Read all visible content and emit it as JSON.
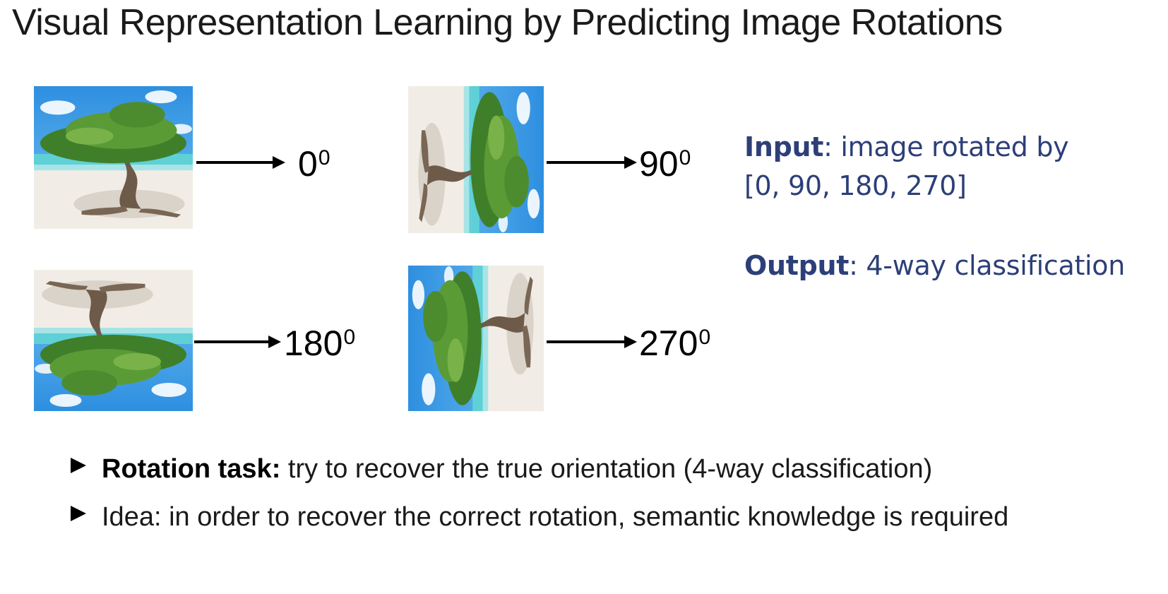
{
  "title": "Visual Representation Learning by Predicting Image Rotations",
  "rotations": [
    {
      "angle": "0",
      "sup": "0"
    },
    {
      "angle": "90",
      "sup": "0"
    },
    {
      "angle": "180",
      "sup": "0"
    },
    {
      "angle": "270",
      "sup": "0"
    }
  ],
  "info": {
    "input_label": "Input",
    "input_text_line1": ": image rotated by",
    "input_text_line2": "[0, 90, 180, 270]",
    "output_label": "Output",
    "output_text": ": 4-way classification"
  },
  "bullets": [
    {
      "bold": "Rotation task:",
      "text": " try to recover the true orientation (4-way classification)"
    },
    {
      "bold": "",
      "text": "Idea: in order to recover the correct rotation, semantic knowledge is required"
    }
  ]
}
